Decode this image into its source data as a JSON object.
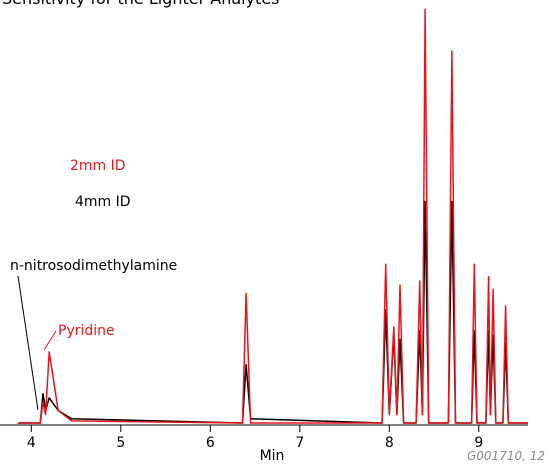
{
  "chart_data": {
    "type": "line",
    "title": "Sensitivity for the Lighter Analytes",
    "x_label": "Min",
    "footnote": "G001710, 12",
    "annotations": [
      "n-nitrosodimethylamine",
      "Pyridine"
    ],
    "x": [
      3.85,
      4.1,
      4.13,
      4.16,
      4.2,
      4.3,
      4.45,
      6.36,
      6.4,
      6.45,
      7.92,
      7.96,
      8.0,
      8.05,
      8.085,
      8.12,
      8.16,
      8.3,
      8.34,
      8.37,
      8.4,
      8.44,
      8.66,
      8.7,
      8.74,
      8.92,
      8.95,
      8.98,
      9.08,
      9.11,
      9.13,
      9.16,
      9.19,
      9.27,
      9.3,
      9.33,
      9.55
    ],
    "series": [
      {
        "name": "2mm ID",
        "color": "#e8141c",
        "values": [
          0,
          0,
          5,
          2,
          17,
          3,
          0.5,
          0,
          31,
          0,
          0,
          38,
          2,
          23,
          2,
          33,
          0,
          0,
          34,
          2,
          99,
          0,
          0,
          89,
          0,
          0,
          38,
          0,
          0,
          35,
          2,
          32,
          0,
          0,
          28,
          0,
          0
        ]
      },
      {
        "name": "4mm ID",
        "color": "#000000",
        "values": [
          0,
          0,
          7,
          3,
          6,
          3,
          1,
          0,
          14,
          1,
          0,
          27,
          2,
          21,
          2,
          20,
          0,
          0,
          22,
          2,
          53,
          0,
          0,
          53,
          0,
          0,
          22,
          0,
          0,
          22,
          2,
          21,
          0,
          0,
          19,
          0,
          0
        ]
      }
    ],
    "xlim": [
      3.65,
      9.55
    ],
    "xticks": [
      4,
      5,
      6,
      7,
      8,
      9
    ],
    "ylim": [
      0,
      100
    ]
  }
}
